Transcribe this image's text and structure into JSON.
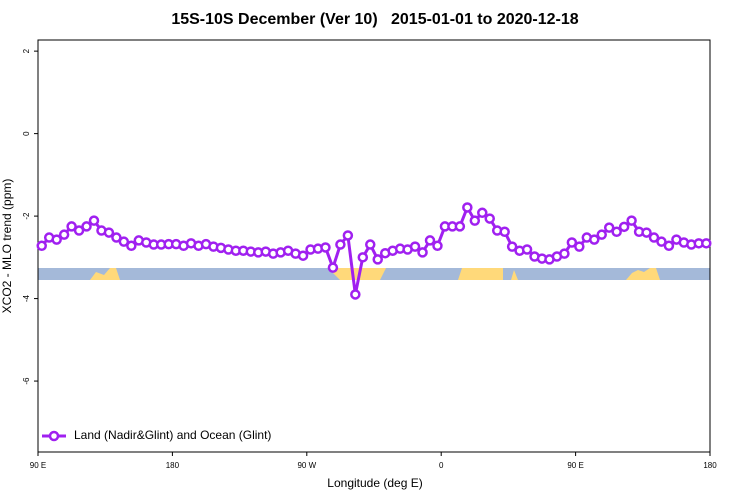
{
  "chart_data": {
    "type": "line",
    "title": "15S-10S December (Ver 10)   2015-01-01 to 2020-12-18",
    "x_label": "Longitude (deg E)",
    "y_label": "XCO2 - MLO trend (ppm)",
    "xlim": [
      90,
      540
    ],
    "ylim": [
      -7.72,
      2.27
    ],
    "xticks": [
      {
        "value": 90,
        "label": "90 E"
      },
      180,
      {
        "value": 270,
        "label": "90 W"
      },
      {
        "value": 360,
        "label": "0"
      },
      {
        "value": 450,
        "label": "90 E"
      },
      {
        "value": 540,
        "label": "180"
      }
    ],
    "yticks": [
      2,
      0,
      -2,
      -4,
      -6
    ],
    "legend": "bottom-left",
    "x": [
      92.5,
      97.5,
      102.5,
      107.5,
      112.5,
      117.5,
      122.5,
      127.5,
      132.5,
      137.5,
      142.5,
      147.5,
      152.5,
      157.5,
      162.5,
      167.5,
      172.5,
      177.5,
      182.5,
      187.5,
      192.5,
      197.5,
      202.5,
      207.5,
      212.5,
      217.5,
      222.5,
      227.5,
      232.5,
      237.5,
      242.5,
      247.5,
      252.5,
      257.5,
      262.5,
      267.5,
      272.5,
      277.5,
      282.5,
      287.5,
      292.5,
      297.5,
      302.5,
      307.5,
      312.5,
      317.5,
      322.5,
      327.5,
      332.5,
      337.5,
      342.5,
      347.5,
      352.5,
      357.5,
      362.5,
      367.5,
      372.5,
      377.5,
      382.5,
      387.5,
      392.5,
      397.5,
      402.5,
      407.5,
      412.5,
      417.5,
      422.5,
      427.5,
      432.5,
      437.5,
      442.5,
      447.5,
      452.5,
      457.5,
      462.5,
      467.5,
      472.5,
      477.5,
      482.5,
      487.5,
      492.5,
      497.5,
      502.5,
      507.5,
      512.5,
      517.5,
      522.5,
      527.5,
      532.5,
      537.5
    ],
    "series": [
      {
        "name": "Land (Nadir&Glint) and Ocean (Glint)",
        "color": "#a020f0",
        "values": [
          -2.72,
          -2.52,
          -2.57,
          -2.45,
          -2.25,
          -2.35,
          -2.25,
          -2.11,
          -2.35,
          -2.4,
          -2.52,
          -2.62,
          -2.72,
          -2.59,
          -2.64,
          -2.69,
          -2.69,
          -2.68,
          -2.68,
          -2.72,
          -2.66,
          -2.72,
          -2.68,
          -2.74,
          -2.77,
          -2.81,
          -2.84,
          -2.84,
          -2.86,
          -2.88,
          -2.86,
          -2.91,
          -2.88,
          -2.84,
          -2.91,
          -2.96,
          -2.81,
          -2.79,
          -2.76,
          -3.25,
          -2.69,
          -2.47,
          -3.9,
          -3.0,
          -2.69,
          -3.05,
          -2.9,
          -2.84,
          -2.79,
          -2.81,
          -2.74,
          -2.88,
          -2.59,
          -2.72,
          -2.25,
          -2.25,
          -2.25,
          -1.79,
          -2.11,
          -1.92,
          -2.06,
          -2.35,
          -2.38,
          -2.74,
          -2.84,
          -2.81,
          -2.98,
          -3.03,
          -3.05,
          -2.98,
          -2.91,
          -2.64,
          -2.74,
          -2.52,
          -2.57,
          -2.45,
          -2.28,
          -2.38,
          -2.26,
          -2.11,
          -2.38,
          -2.4,
          -2.52,
          -2.62,
          -2.72,
          -2.57,
          -2.64,
          -2.69,
          -2.66,
          -2.66
        ]
      }
    ]
  }
}
